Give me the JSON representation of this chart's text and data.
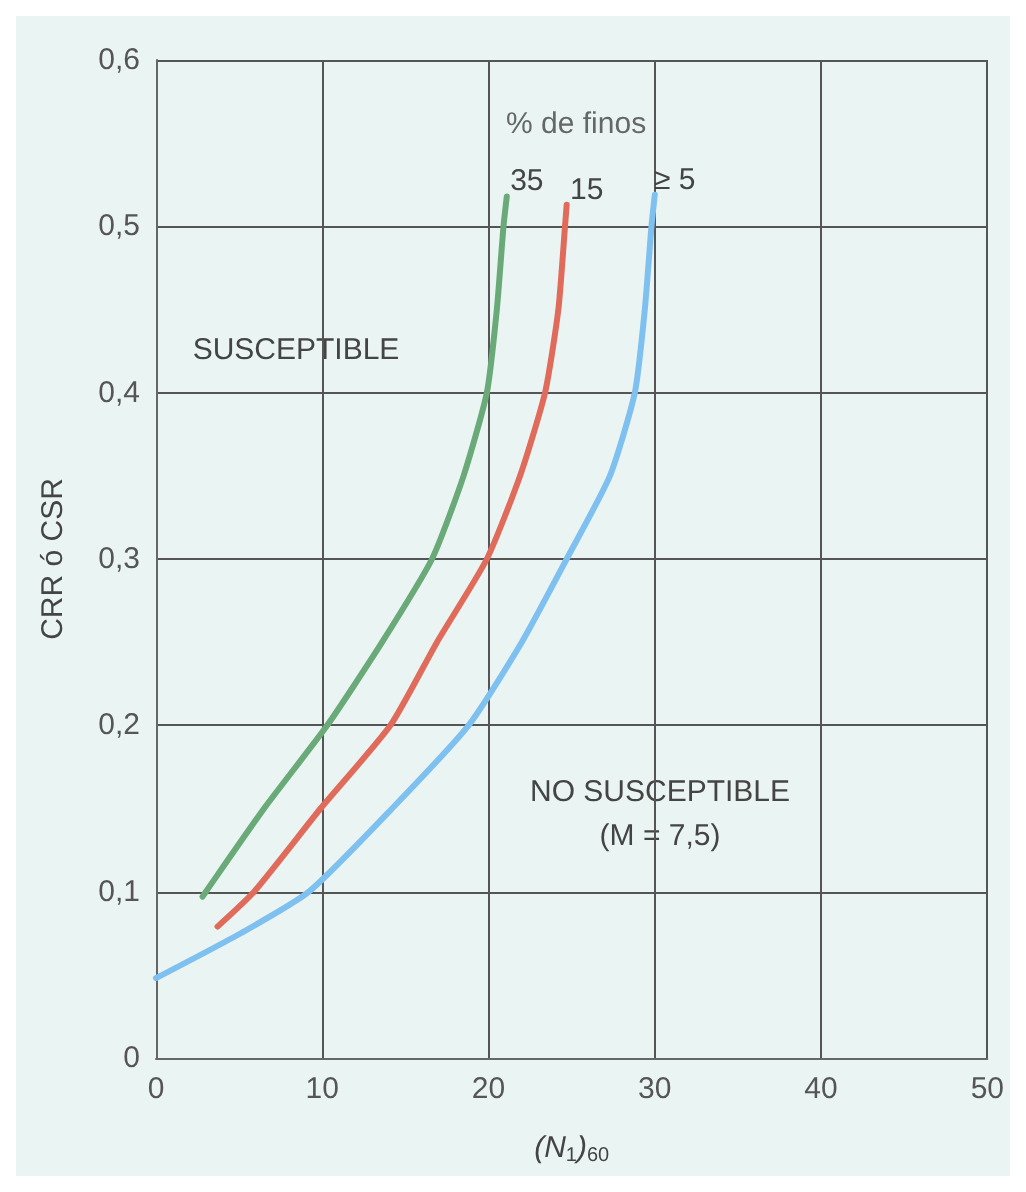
{
  "chart_data": {
    "type": "line",
    "xlabel": "(N$_{1}$)$_{60}$",
    "ylabel": "CRR ó CSR",
    "xlim": [
      0,
      50
    ],
    "xticks": [
      0,
      10,
      20,
      30,
      40,
      50
    ],
    "ylim": [
      0,
      0.6
    ],
    "yticks": [
      0,
      {
        "value": 0.1,
        "label": "0,1"
      },
      {
        "value": 0.2,
        "label": "0,2"
      },
      {
        "value": 0.3,
        "label": "0,3"
      },
      {
        "value": 0.4,
        "label": "0,4"
      },
      {
        "value": 0.5,
        "label": "0,5"
      },
      {
        "value": 0.6,
        "label": "0,6"
      }
    ],
    "grid": true,
    "marker": "none",
    "line_style": "solid",
    "legend_title": "% de finos",
    "series": [
      {
        "name": "35",
        "color": "#6aaa78",
        "x": [
          2.8,
          3.0,
          6.5,
          10.3,
          13.6,
          16.6,
          18.5,
          19.9,
          20.5,
          20.9,
          21.1
        ],
        "values": [
          0.097,
          0.1,
          0.15,
          0.2,
          0.25,
          0.3,
          0.35,
          0.4,
          0.45,
          0.5,
          0.518
        ]
      },
      {
        "name": "15",
        "color": "#e06b5b",
        "x": [
          3.7,
          5.9,
          9.9,
          14.1,
          16.9,
          19.9,
          21.9,
          23.4,
          24.2,
          24.6,
          24.7
        ],
        "values": [
          0.079,
          0.1,
          0.15,
          0.2,
          0.25,
          0.3,
          0.35,
          0.4,
          0.45,
          0.5,
          0.513
        ]
      },
      {
        "name": "≥ 5",
        "color": "#7ec0f0",
        "x": [
          0,
          5.1,
          9.2,
          14.2,
          18.8,
          22.0,
          24.7,
          27.3,
          28.8,
          29.4,
          29.8,
          30.0
        ],
        "values": [
          0.048,
          0.075,
          0.1,
          0.15,
          0.2,
          0.25,
          0.3,
          0.35,
          0.4,
          0.45,
          0.5,
          0.519
        ]
      }
    ],
    "annotations": [
      "SUSCEPTIBLE",
      "NO SUSCEPTIBLE",
      "(M = 7,5)"
    ]
  }
}
